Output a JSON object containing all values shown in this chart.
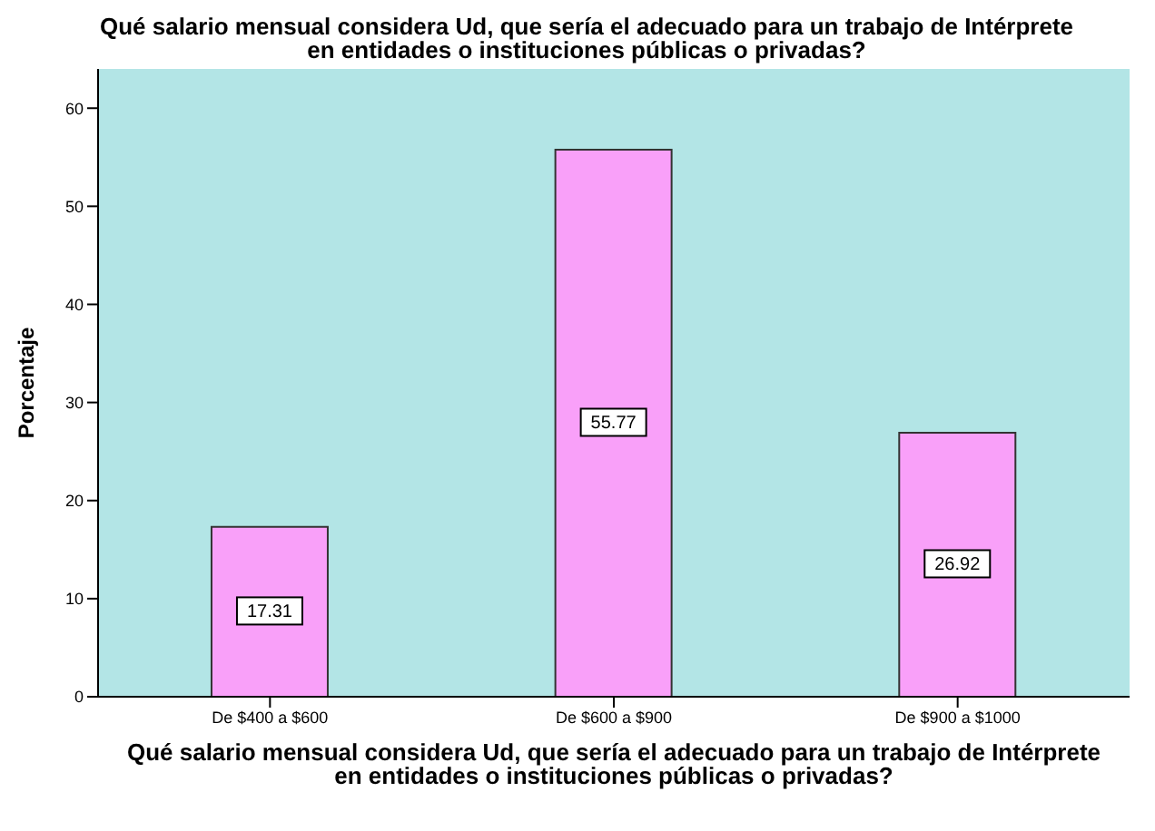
{
  "chart_data": {
    "type": "bar",
    "title": "Qué salario mensual considera Ud, que sería el adecuado para un trabajo de Intérprete en entidades o instituciones públicas o privadas?",
    "xlabel": "Qué salario mensual considera Ud, que sería el adecuado para un trabajo de Intérprete en entidades o instituciones públicas o privadas?",
    "ylabel": "Porcentaje",
    "categories": [
      "De $400 a $600",
      "De $600 a $900",
      "De $900 a $1000"
    ],
    "values": [
      17.31,
      55.77,
      26.92
    ],
    "color": "#f9a0f9",
    "ylim": [
      0,
      64
    ],
    "yticks": [
      0,
      10,
      20,
      30,
      40,
      50,
      60
    ],
    "data_labels": true
  }
}
